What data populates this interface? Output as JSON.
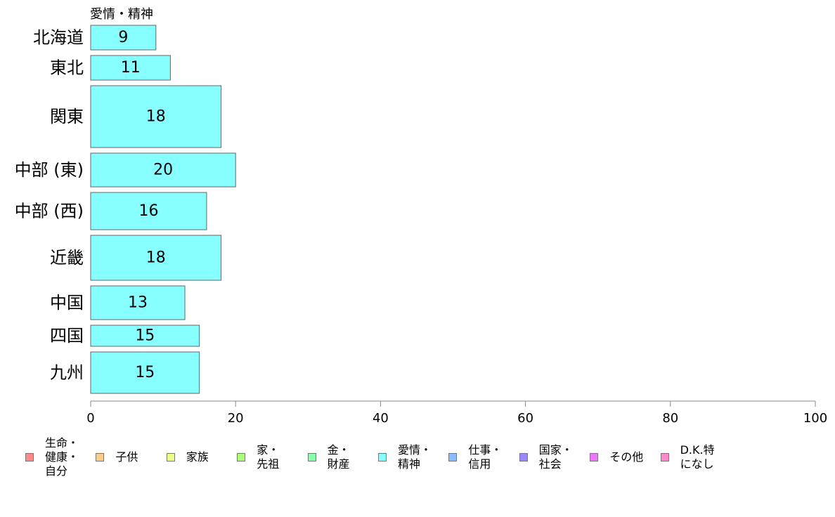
{
  "chart_data": {
    "type": "bar",
    "orientation": "horizontal",
    "title": "愛情・精神",
    "categories": [
      "北海道",
      "東北",
      "関東",
      "中部 (東)",
      "中部 (西)",
      "近畿",
      "中国",
      "四国",
      "九州"
    ],
    "values": [
      9,
      11,
      18,
      20,
      16,
      18,
      13,
      15,
      15
    ],
    "value_labels": [
      "9",
      "11",
      "18",
      "20",
      "16",
      "18",
      "13",
      "15",
      "15"
    ],
    "bar_weights": [
      35,
      35,
      88,
      48,
      53,
      64,
      48,
      30,
      59
    ],
    "xlim": [
      0,
      100
    ],
    "xticks": [
      0,
      20,
      40,
      60,
      80,
      100
    ],
    "xtick_labels": [
      "0",
      "20",
      "40",
      "60",
      "80",
      "100"
    ],
    "bar_color": "#88ffff",
    "bar_border_color": "#666666",
    "grid": false,
    "legend_position": "bottom",
    "legend": [
      {
        "label": "生命・\n健康・\n自分",
        "color": "#ff8888"
      },
      {
        "label": "子供",
        "color": "#ffcc88"
      },
      {
        "label": "家族",
        "color": "#eeff88"
      },
      {
        "label": "家・\n先祖",
        "color": "#aaff77"
      },
      {
        "label": "金・\n財産",
        "color": "#88ffaa"
      },
      {
        "label": "愛情・\n精神",
        "color": "#88ffff"
      },
      {
        "label": "仕事・\n信用",
        "color": "#88bbff"
      },
      {
        "label": "国家・\n社会",
        "color": "#9988ff"
      },
      {
        "label": "その他",
        "color": "#ee77ff"
      },
      {
        "label": "D.K.特\nになし",
        "color": "#ff88cc"
      }
    ]
  }
}
